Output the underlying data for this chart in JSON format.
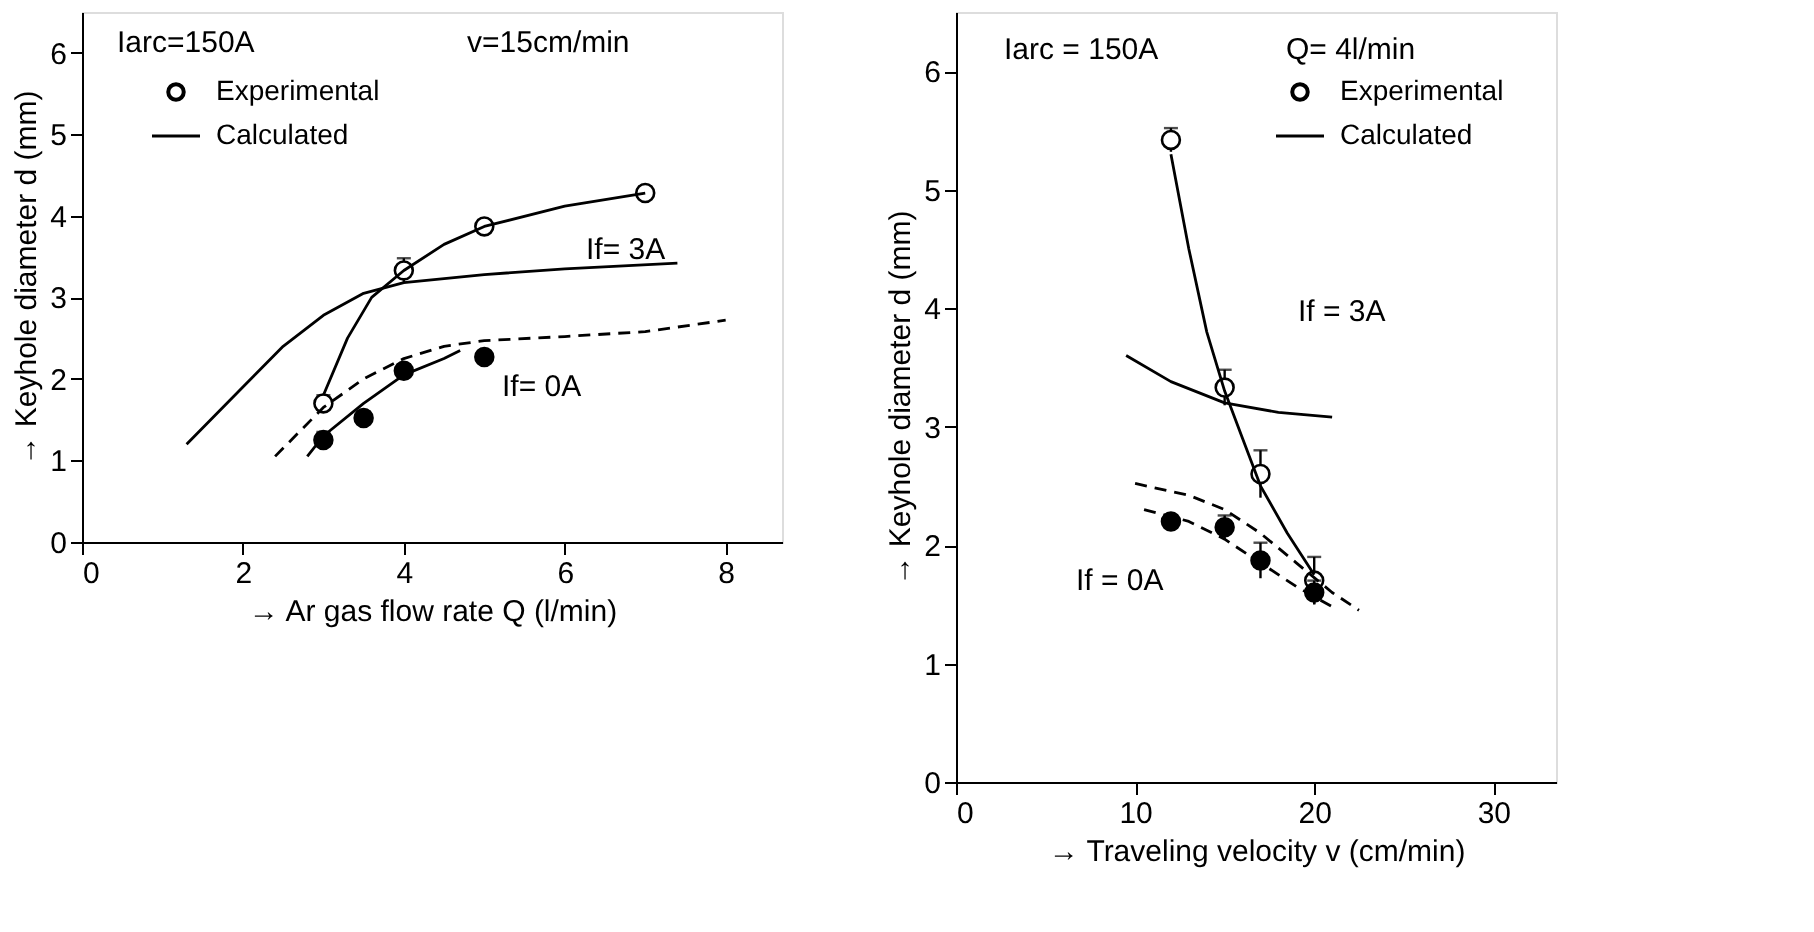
{
  "chart_data": [
    {
      "type": "scatter",
      "xlabel": "→ Ar gas flow rate  Q (l/min)",
      "ylabel": "→ Keyhole diameter d (mm)",
      "xlim": [
        0,
        8.7
      ],
      "ylim": [
        0,
        6.5
      ],
      "xticks": [
        0,
        2,
        4,
        6,
        8
      ],
      "yticks": [
        0,
        1,
        2,
        3,
        4,
        5,
        6
      ],
      "grid": false,
      "legend": "top left",
      "annotations": [
        "Iarc=150A",
        "v=15cm/min",
        "If= 3A",
        "If= 0A"
      ],
      "series": [
        {
          "name": "Experimental",
          "marker": "circle",
          "color": "#ffffff",
          "x": [
            3,
            4,
            5,
            7
          ],
          "values": [
            1.7,
            3.33,
            3.87,
            4.28
          ],
          "errors": [
            0.1,
            0.15,
            0.08,
            0.08
          ]
        },
        {
          "marker": "circle",
          "color": "#000000",
          "x": [
            3,
            3.5,
            4,
            5
          ],
          "values": [
            1.25,
            1.52,
            2.1,
            2.27
          ],
          "errors": [
            0.1,
            0.08,
            0.08,
            null
          ]
        },
        {
          "type": "line",
          "line_style": "solid",
          "color": "#000000",
          "x": [
            3,
            3.3,
            3.6,
            4,
            4.5,
            5,
            6,
            7
          ],
          "values": [
            1.8,
            2.5,
            3.0,
            3.33,
            3.65,
            3.87,
            4.12,
            4.28
          ]
        },
        {
          "type": "line",
          "line_style": "solid",
          "color": "#000000",
          "x": [
            2.8,
            3,
            3.5,
            4,
            4.5,
            4.7
          ],
          "values": [
            1.05,
            1.3,
            1.7,
            2.05,
            2.25,
            2.35
          ]
        },
        {
          "name": "Calculated",
          "type": "line",
          "line_style": "solid",
          "color": "#000000",
          "x": [
            1.3,
            2,
            2.5,
            3,
            3.5,
            4,
            5,
            6,
            7.4
          ],
          "values": [
            1.2,
            1.9,
            2.4,
            2.78,
            3.05,
            3.18,
            3.28,
            3.35,
            3.42
          ]
        },
        {
          "type": "line",
          "line_style": "dashed",
          "color": "#000000",
          "x": [
            2.4,
            3,
            3.5,
            4,
            4.5,
            5,
            6,
            7,
            8
          ],
          "values": [
            1.05,
            1.65,
            2.0,
            2.25,
            2.4,
            2.47,
            2.52,
            2.58,
            2.72
          ]
        }
      ]
    },
    {
      "type": "scatter",
      "xlabel": "→ Traveling  velocity  v (cm/min)",
      "ylabel": "→ Keyhole diameter d (mm)",
      "xlim": [
        0,
        33.5
      ],
      "ylim": [
        0,
        6.5
      ],
      "xticks": [
        0,
        10,
        20,
        30
      ],
      "yticks": [
        0,
        1,
        2,
        3,
        4,
        5,
        6
      ],
      "grid": false,
      "legend": "top right",
      "annotations": [
        "Iarc = 150A",
        "Q= 4l/min",
        "If = 3A",
        "If = 0A"
      ],
      "series": [
        {
          "name": "Experimental",
          "marker": "circle",
          "color": "#ffffff",
          "x": [
            12,
            15,
            17,
            20
          ],
          "values": [
            5.42,
            3.33,
            2.6,
            1.7
          ],
          "errors": [
            0.1,
            0.15,
            0.2,
            0.2
          ]
        },
        {
          "marker": "circle",
          "color": "#000000",
          "x": [
            12,
            15,
            17,
            20
          ],
          "values": [
            2.2,
            2.15,
            1.87,
            1.6
          ],
          "errors": [
            null,
            0.1,
            0.15,
            0.1
          ]
        },
        {
          "type": "line",
          "line_style": "solid",
          "color": "#000000",
          "x": [
            12,
            13,
            14,
            15,
            16,
            17,
            18.5,
            20
          ],
          "values": [
            5.3,
            4.5,
            3.8,
            3.3,
            2.9,
            2.5,
            2.1,
            1.75
          ]
        },
        {
          "type": "line",
          "line_style": "dashed",
          "color": "#000000",
          "x": [
            10.5,
            13,
            15,
            17,
            19,
            21
          ],
          "values": [
            2.3,
            2.2,
            2.05,
            1.85,
            1.65,
            1.48
          ]
        },
        {
          "name": "Calculated",
          "type": "line",
          "line_style": "solid",
          "color": "#000000",
          "x": [
            9.5,
            12,
            15,
            18,
            21
          ],
          "values": [
            3.6,
            3.38,
            3.2,
            3.12,
            3.08
          ]
        },
        {
          "type": "line",
          "line_style": "dashed",
          "color": "#000000",
          "x": [
            10,
            13,
            15,
            17,
            19,
            21,
            22.5
          ],
          "values": [
            2.52,
            2.42,
            2.3,
            2.1,
            1.85,
            1.6,
            1.45
          ]
        }
      ]
    }
  ]
}
